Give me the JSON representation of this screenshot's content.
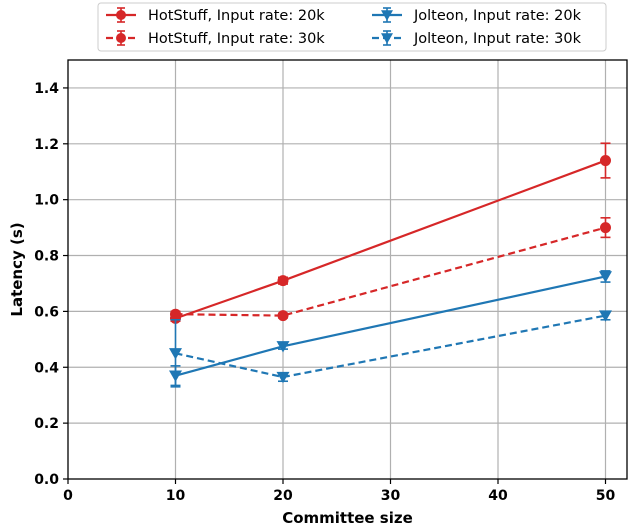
{
  "chart_data": {
    "type": "line",
    "title": "",
    "xlabel": "Committee size",
    "ylabel": "Latency (s)",
    "xlim": [
      0,
      52
    ],
    "ylim": [
      0,
      1.5
    ],
    "x_ticks": [
      "0",
      "10",
      "20",
      "30",
      "40",
      "50"
    ],
    "y_ticks": [
      "0.0",
      "0.2",
      "0.4",
      "0.6",
      "0.8",
      "1.0",
      "1.2",
      "1.4"
    ],
    "grid": true,
    "legend_position": "top-center",
    "x": [
      10,
      20,
      50
    ],
    "series": [
      {
        "name": "HotStuff, Input rate: 20k",
        "color": "#d62728",
        "linestyle": "solid",
        "marker": "circle",
        "values": [
          0.575,
          0.71,
          1.14
        ],
        "errors": [
          0.01,
          0.012,
          0.062
        ]
      },
      {
        "name": "HotStuff, Input rate: 30k",
        "color": "#d62728",
        "linestyle": "dashed",
        "marker": "circle",
        "values": [
          0.59,
          0.585,
          0.9
        ],
        "errors": [
          0.01,
          0.008,
          0.035
        ]
      },
      {
        "name": "Jolteon, Input rate: 20k",
        "color": "#1f77b4",
        "linestyle": "solid",
        "marker": "triangle-down",
        "values": [
          0.37,
          0.475,
          0.725
        ],
        "errors": [
          0.035,
          0.01,
          0.02
        ]
      },
      {
        "name": "Jolteon, Input rate: 30k",
        "color": "#1f77b4",
        "linestyle": "dashed",
        "marker": "triangle-down",
        "values": [
          0.45,
          0.365,
          0.585
        ],
        "errors": [
          0.12,
          0.015,
          0.015
        ]
      }
    ]
  }
}
